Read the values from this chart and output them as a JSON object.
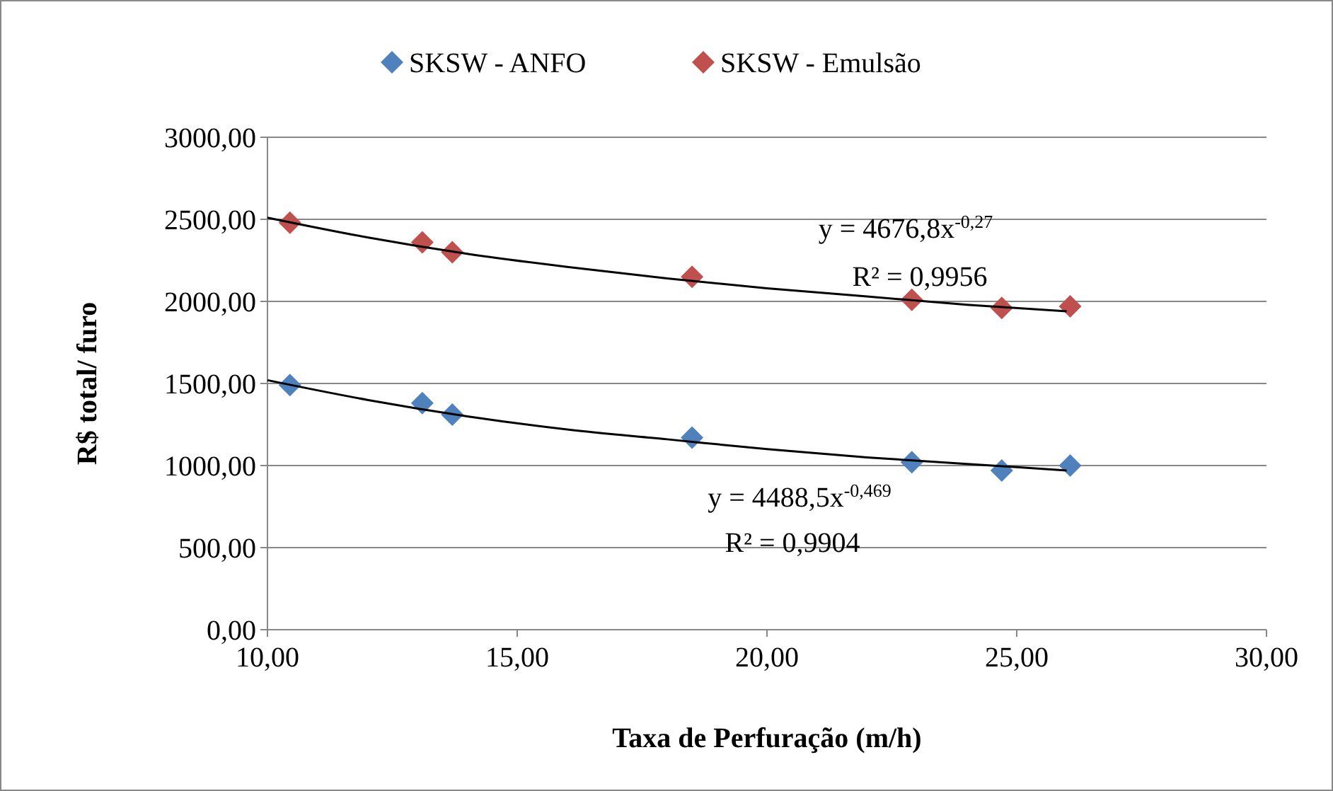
{
  "chart_data": {
    "type": "scatter",
    "xlabel": "Taxa de Perfuração (m/h)",
    "ylabel": "R$ total/ furo",
    "xlim": [
      10,
      30
    ],
    "xticks": [
      {
        "value": 10,
        "label": "10,00"
      },
      {
        "value": 15,
        "label": "15,00"
      },
      {
        "value": 20,
        "label": "20,00"
      },
      {
        "value": 25,
        "label": "25,00"
      },
      {
        "value": 30,
        "label": "30,00"
      }
    ],
    "ylim": [
      0,
      3000
    ],
    "yticks": [
      {
        "value": 0,
        "label": "0,00"
      },
      {
        "value": 500,
        "label": "500,00"
      },
      {
        "value": 1000,
        "label": "1000,00"
      },
      {
        "value": 1500,
        "label": "1500,00"
      },
      {
        "value": 2000,
        "label": "2000,00"
      },
      {
        "value": 2500,
        "label": "2500,00"
      },
      {
        "value": 3000,
        "label": "3000,00"
      }
    ],
    "grid": "y",
    "legend": "top",
    "marker": "diamond",
    "series": [
      {
        "name": "SKSW - ANFO",
        "color": "#4f81bd",
        "x": [
          10.45,
          13.1,
          13.7,
          18.5,
          22.9,
          24.7,
          26.07
        ],
        "values": [
          1490,
          1380,
          1310,
          1170,
          1020,
          970,
          1000
        ]
      },
      {
        "name": "SKSW - Emulsão",
        "color": "#c0504d",
        "x": [
          10.45,
          13.1,
          13.7,
          18.5,
          22.9,
          24.7,
          26.07
        ],
        "values": [
          2480,
          2360,
          2300,
          2150,
          2010,
          1960,
          1970
        ]
      },
      {
        "type": "line",
        "color": "#000000",
        "marker": "none",
        "x": [
          10,
          12,
          14,
          16,
          18,
          20,
          22,
          24,
          26
        ],
        "values": [
          1520,
          1400,
          1300,
          1220,
          1160,
          1100,
          1050,
          1010,
          970
        ]
      },
      {
        "type": "line",
        "color": "#000000",
        "marker": "none",
        "x": [
          10,
          12,
          14,
          16,
          18,
          20,
          22,
          24,
          26
        ],
        "values": [
          2510,
          2390,
          2290,
          2210,
          2140,
          2080,
          2030,
          1980,
          1940
        ]
      }
    ],
    "annotations": [
      "y = 4676,8x$^{-0,27}$",
      "R² = 0,9956",
      "y = 4488,5x$^{-0,469}$",
      "R² = 0,9904"
    ]
  }
}
